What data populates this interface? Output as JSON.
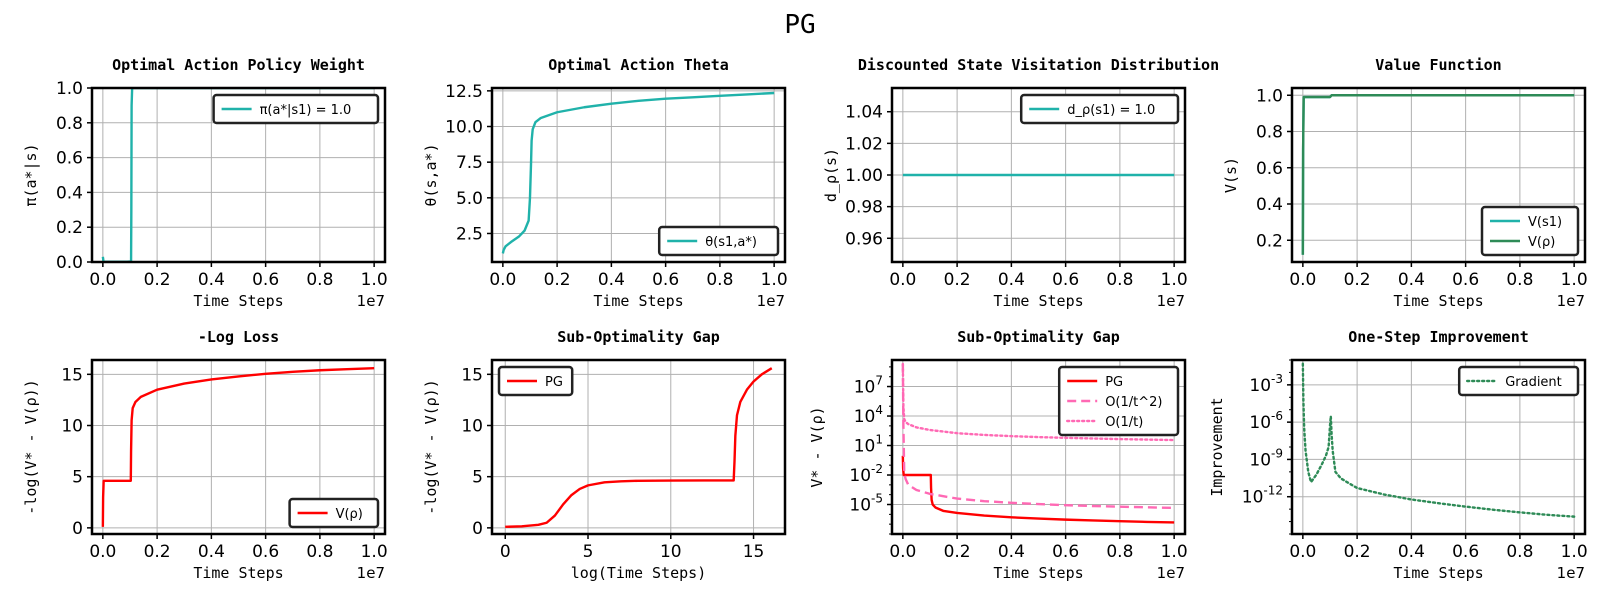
{
  "figure_title": "PG",
  "chart_data": [
    {
      "type": "line",
      "title": "Optimal Action Policy Weight",
      "xlabel": "Time Steps",
      "ylabel": "π(a*|s)",
      "x_offset_label": "1e7",
      "xlim": [
        -0.04,
        1.04
      ],
      "ylim": [
        0,
        1.0
      ],
      "xticks": [
        0.0,
        0.2,
        0.4,
        0.6,
        0.8,
        1.0
      ],
      "xtick_labels": [
        "0.0",
        "0.2",
        "0.4",
        "0.6",
        "0.8",
        "1.0"
      ],
      "yticks": [
        0.0,
        0.2,
        0.4,
        0.6,
        0.8,
        1.0
      ],
      "ytick_labels": [
        "0.0",
        "0.2",
        "0.4",
        "0.6",
        "0.8",
        "1.0"
      ],
      "grid": true,
      "legend": "top-right",
      "series": [
        {
          "name": "π(a*|s1) = 1.0",
          "color": "#20b2aa",
          "style": "solid",
          "x": [
            0.0,
            0.001,
            0.002,
            0.004,
            0.01,
            0.05,
            0.09,
            0.104,
            0.105,
            0.106,
            0.108,
            1.0
          ],
          "y": [
            0.03,
            0.02,
            0.004,
            0.002,
            0.002,
            0.002,
            0.002,
            0.003,
            0.3,
            0.9,
            1.0,
            1.0
          ]
        }
      ]
    },
    {
      "type": "line",
      "title": "Optimal Action Theta",
      "xlabel": "Time Steps",
      "ylabel": "θ(s,a*)",
      "x_offset_label": "1e7",
      "xlim": [
        -0.04,
        1.04
      ],
      "ylim": [
        0.5,
        12.7
      ],
      "xticks": [
        0.0,
        0.2,
        0.4,
        0.6,
        0.8,
        1.0
      ],
      "xtick_labels": [
        "0.0",
        "0.2",
        "0.4",
        "0.6",
        "0.8",
        "1.0"
      ],
      "yticks": [
        2.5,
        5.0,
        7.5,
        10.0,
        12.5
      ],
      "ytick_labels": [
        "2.5",
        "5.0",
        "7.5",
        "10.0",
        "12.5"
      ],
      "grid": true,
      "legend": "bottom-right",
      "series": [
        {
          "name": "θ(s1,a*)",
          "color": "#20b2aa",
          "style": "solid",
          "x": [
            0.0,
            0.003,
            0.01,
            0.03,
            0.06,
            0.08,
            0.095,
            0.1,
            0.104,
            0.106,
            0.11,
            0.12,
            0.14,
            0.2,
            0.3,
            0.4,
            0.5,
            0.6,
            0.7,
            0.8,
            0.9,
            1.0
          ],
          "y": [
            1.1,
            1.35,
            1.6,
            1.9,
            2.3,
            2.7,
            3.4,
            5.0,
            7.5,
            9.0,
            9.8,
            10.3,
            10.6,
            11.0,
            11.35,
            11.6,
            11.8,
            11.95,
            12.05,
            12.15,
            12.25,
            12.35
          ]
        }
      ]
    },
    {
      "type": "line",
      "title": "Discounted State Visitation Distribution",
      "xlabel": "Time Steps",
      "ylabel": "d_ρ(s)",
      "x_offset_label": "1e7",
      "xlim": [
        -0.04,
        1.04
      ],
      "ylim": [
        0.945,
        1.055
      ],
      "xticks": [
        0.0,
        0.2,
        0.4,
        0.6,
        0.8,
        1.0
      ],
      "xtick_labels": [
        "0.0",
        "0.2",
        "0.4",
        "0.6",
        "0.8",
        "1.0"
      ],
      "yticks": [
        0.96,
        0.98,
        1.0,
        1.02,
        1.04
      ],
      "ytick_labels": [
        "0.96",
        "0.98",
        "1.00",
        "1.02",
        "1.04"
      ],
      "grid": true,
      "legend": "top-right",
      "series": [
        {
          "name": "d_ρ(s1) = 1.0",
          "color": "#20b2aa",
          "style": "solid",
          "x": [
            0.0,
            1.0
          ],
          "y": [
            1.0,
            1.0
          ]
        }
      ]
    },
    {
      "type": "line",
      "title": "Value Function",
      "xlabel": "Time Steps",
      "ylabel": "V(s)",
      "x_offset_label": "1e7",
      "xlim": [
        -0.04,
        1.04
      ],
      "ylim": [
        0.08,
        1.04
      ],
      "xticks": [
        0.0,
        0.2,
        0.4,
        0.6,
        0.8,
        1.0
      ],
      "xtick_labels": [
        "0.0",
        "0.2",
        "0.4",
        "0.6",
        "0.8",
        "1.0"
      ],
      "yticks": [
        0.2,
        0.4,
        0.6,
        0.8,
        1.0
      ],
      "ytick_labels": [
        "0.2",
        "0.4",
        "0.6",
        "0.8",
        "1.0"
      ],
      "grid": true,
      "legend": "bottom-right",
      "series": [
        {
          "name": "V(s1)",
          "color": "#20b2aa",
          "style": "solid",
          "x": [
            0.0,
            0.001,
            0.003,
            0.1,
            0.106,
            1.0
          ],
          "y": [
            0.12,
            0.7,
            0.99,
            0.99,
            1.0,
            1.0
          ]
        },
        {
          "name": "V(ρ)",
          "color": "#2e8b57",
          "style": "solid",
          "x": [
            0.0,
            0.001,
            0.003,
            0.1,
            0.106,
            1.0
          ],
          "y": [
            0.12,
            0.7,
            0.99,
            0.99,
            1.0,
            1.0
          ]
        }
      ]
    },
    {
      "type": "line",
      "title": "-Log Loss",
      "xlabel": "Time Steps",
      "ylabel": "-log(V* - V(ρ))",
      "x_offset_label": "1e7",
      "xlim": [
        -0.04,
        1.04
      ],
      "ylim": [
        -0.6,
        16.4
      ],
      "xticks": [
        0.0,
        0.2,
        0.4,
        0.6,
        0.8,
        1.0
      ],
      "xtick_labels": [
        "0.0",
        "0.2",
        "0.4",
        "0.6",
        "0.8",
        "1.0"
      ],
      "yticks": [
        0,
        5,
        10,
        15
      ],
      "ytick_labels": [
        "0",
        "5",
        "10",
        "15"
      ],
      "grid": true,
      "legend": "bottom-right",
      "series": [
        {
          "name": "V(ρ)",
          "color": "#ff0000",
          "style": "solid",
          "x": [
            0.0,
            0.001,
            0.003,
            0.103,
            0.104,
            0.106,
            0.11,
            0.12,
            0.14,
            0.2,
            0.3,
            0.4,
            0.5,
            0.6,
            0.7,
            0.8,
            0.9,
            1.0
          ],
          "y": [
            0.1,
            3.0,
            4.6,
            4.6,
            7.5,
            10.5,
            11.7,
            12.3,
            12.8,
            13.5,
            14.1,
            14.5,
            14.8,
            15.05,
            15.25,
            15.4,
            15.5,
            15.6
          ]
        }
      ]
    },
    {
      "type": "line",
      "title": "Sub-Optimality Gap",
      "xlabel": "log(Time Steps)",
      "ylabel": "-log(V* - V(ρ))",
      "xlim": [
        -0.8,
        16.9
      ],
      "ylim": [
        -0.6,
        16.4
      ],
      "xticks": [
        0,
        5,
        10,
        15
      ],
      "xtick_labels": [
        "0",
        "5",
        "10",
        "15"
      ],
      "yticks": [
        0,
        5,
        10,
        15
      ],
      "ytick_labels": [
        "0",
        "5",
        "10",
        "15"
      ],
      "grid": true,
      "legend": "top-left",
      "series": [
        {
          "name": "PG",
          "color": "#ff0000",
          "style": "solid",
          "x": [
            0.0,
            1.0,
            2.0,
            2.5,
            3.0,
            3.5,
            4.0,
            4.5,
            5.0,
            6.0,
            7.0,
            8.0,
            10.0,
            12.0,
            13.8,
            13.85,
            13.9,
            14.0,
            14.2,
            14.6,
            15.0,
            15.5,
            16.1
          ],
          "y": [
            0.1,
            0.15,
            0.3,
            0.5,
            1.2,
            2.3,
            3.2,
            3.8,
            4.15,
            4.45,
            4.55,
            4.6,
            4.62,
            4.63,
            4.63,
            6.5,
            9.0,
            11.0,
            12.3,
            13.5,
            14.3,
            15.0,
            15.6
          ]
        }
      ]
    },
    {
      "type": "line",
      "title": "Sub-Optimality Gap",
      "xlabel": "Time Steps",
      "ylabel": "V* - V(ρ)",
      "x_offset_label": "1e7",
      "xlim": [
        -0.04,
        1.04
      ],
      "ylim": [
        1e-08,
        5000000000.0
      ],
      "y_scale": "log",
      "xticks": [
        0.0,
        0.2,
        0.4,
        0.6,
        0.8,
        1.0
      ],
      "xtick_labels": [
        "0.0",
        "0.2",
        "0.4",
        "0.6",
        "0.8",
        "1.0"
      ],
      "yticks": [
        1e-05,
        0.01,
        10,
        10000.0,
        10000000.0
      ],
      "ytick_labels": [
        "10^-5",
        "10^-2",
        "10^1",
        "10^4",
        "10^7"
      ],
      "grid": true,
      "legend": "top-right",
      "series": [
        {
          "name": "PG",
          "color": "#ff0000",
          "style": "solid",
          "x": [
            0.0,
            0.001,
            0.003,
            0.103,
            0.104,
            0.106,
            0.11,
            0.12,
            0.15,
            0.2,
            0.3,
            0.4,
            0.5,
            0.6,
            0.7,
            0.8,
            0.9,
            1.0
          ],
          "y": [
            0.9,
            0.05,
            0.01,
            0.01,
            0.0005,
            3e-05,
            1e-05,
            5e-06,
            2.2e-06,
            1.4e-06,
            7.5e-07,
            5e-07,
            3.7e-07,
            2.9e-07,
            2.4e-07,
            2e-07,
            1.7e-07,
            1.5e-07
          ]
        },
        {
          "name": "O(1/t^2)",
          "color": "#ff69b4",
          "style": "dashed",
          "x": [
            0.0,
            0.001,
            0.002,
            0.005,
            0.01,
            0.02,
            0.05,
            0.1,
            0.2,
            0.3,
            0.4,
            0.5,
            0.6,
            0.7,
            0.8,
            0.9,
            1.0
          ],
          "y": [
            2000000000.0,
            1000000.0,
            1000.0,
            0.02,
            0.004,
            0.001,
            0.0003,
            0.00012,
            4e-05,
            2.2e-05,
            1.5e-05,
            1.1e-05,
            8.5e-06,
            7e-06,
            6e-06,
            5.2e-06,
            4.5e-06
          ]
        },
        {
          "name": "O(1/t)",
          "color": "#ff69b4",
          "style": "dotted",
          "x": [
            0.0,
            0.001,
            0.002,
            0.005,
            0.01,
            0.02,
            0.05,
            0.1,
            0.2,
            0.3,
            0.4,
            0.5,
            0.6,
            0.7,
            0.8,
            0.9,
            1.0
          ],
          "y": [
            2000000000.0,
            10000000.0,
            100000.0,
            5000.0,
            2500.0,
            1500.0,
            700,
            380,
            180,
            120,
            90,
            72,
            60,
            52,
            45,
            40,
            36
          ]
        }
      ]
    },
    {
      "type": "line",
      "title": "One-Step Improvement",
      "xlabel": "Time Steps",
      "ylabel": "Improvement",
      "x_offset_label": "1e7",
      "xlim": [
        -0.04,
        1.04
      ],
      "ylim": [
        1e-15,
        0.1
      ],
      "y_scale": "log",
      "xticks": [
        0.0,
        0.2,
        0.4,
        0.6,
        0.8,
        1.0
      ],
      "xtick_labels": [
        "0.0",
        "0.2",
        "0.4",
        "0.6",
        "0.8",
        "1.0"
      ],
      "yticks": [
        1e-12,
        1e-09,
        1e-06,
        0.001
      ],
      "ytick_labels": [
        "10^-12",
        "10^-9",
        "10^-6",
        "10^-3"
      ],
      "grid": true,
      "legend": "top-right",
      "series": [
        {
          "name": "Gradient",
          "color": "#2e8b57",
          "style": "dotted",
          "x": [
            0.0,
            0.002,
            0.005,
            0.01,
            0.02,
            0.03,
            0.05,
            0.07,
            0.085,
            0.095,
            0.1,
            0.103,
            0.106,
            0.11,
            0.12,
            0.14,
            0.17,
            0.2,
            0.3,
            0.4,
            0.5,
            0.6,
            0.7,
            0.8,
            0.9,
            1.0
          ],
          "y": [
            0.05,
            5e-05,
            3e-07,
            5e-09,
            1e-10,
            1.5e-11,
            6e-11,
            4e-10,
            2e-09,
            1e-08,
            5e-07,
            3e-06,
            1e-07,
            5e-09,
            1e-10,
            3e-11,
            1.2e-11,
            5e-12,
            1.5e-12,
            6e-13,
            3e-13,
            1.6e-13,
            9e-14,
            5.5e-14,
            3.5e-14,
            2.5e-14
          ]
        }
      ]
    }
  ]
}
